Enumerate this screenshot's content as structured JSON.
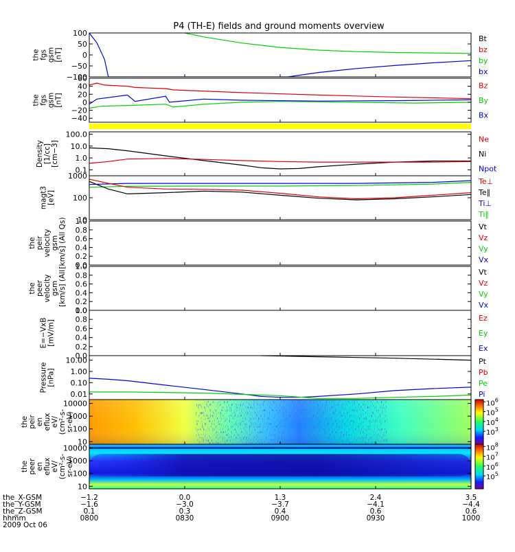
{
  "title": "P4 (TH-E) fields and ground moments overview",
  "colors": {
    "black": "#000000",
    "red": "#e00000",
    "green": "#00d000",
    "blue": "#0000e0",
    "yellow": "#ffff00"
  },
  "chart_data": [
    {
      "type": "line",
      "panel": "fgs-gsm-1",
      "ylabel": [
        "the",
        "fgs",
        "gsm",
        "[nT]"
      ],
      "ylim": [
        -100,
        100
      ],
      "yticks": [
        "100",
        "50",
        "0",
        "−50",
        "−100"
      ],
      "legend": [
        {
          "text": "Bt",
          "color": "#000000"
        },
        {
          "text": "bz",
          "color": "#e00000"
        },
        {
          "text": "by",
          "color": "#00d000"
        },
        {
          "text": "bx",
          "color": "#0000e0"
        }
      ],
      "series": [
        {
          "name": "by",
          "color": "#00d000",
          "x": [
            0.25,
            0.3,
            0.4,
            0.5,
            0.6,
            0.7,
            0.8,
            0.9,
            1.0
          ],
          "y": [
            100,
            82,
            54,
            34,
            22,
            15,
            11,
            9,
            7
          ]
        },
        {
          "name": "bx",
          "color": "#0000e0",
          "x": [
            0.0,
            0.02,
            0.04,
            0.05,
            0.52,
            0.6,
            0.7,
            0.8,
            0.9,
            1.0
          ],
          "y": [
            100,
            55,
            -20,
            -100,
            -100,
            -80,
            -62,
            -48,
            -36,
            -26
          ]
        }
      ]
    },
    {
      "type": "line",
      "panel": "fgs-gsm-2",
      "ylabel": [
        "the",
        "fgs",
        "gsm",
        "[nT]"
      ],
      "ylim": [
        -50,
        60
      ],
      "yticks": [
        "60",
        "40",
        "20",
        "0",
        "−20",
        "−40"
      ],
      "legend": [
        {
          "text": "Bz",
          "color": "#e00000"
        },
        {
          "text": "By",
          "color": "#00d000"
        },
        {
          "text": "Bx",
          "color": "#0000e0"
        }
      ],
      "series": [
        {
          "name": "Bz",
          "color": "#e00000",
          "x": [
            0.0,
            0.02,
            0.04,
            0.1,
            0.12,
            0.2,
            0.22,
            0.4,
            0.6,
            0.8,
            1.0
          ],
          "y": [
            43,
            48,
            43,
            40,
            37,
            34,
            31,
            24,
            18,
            13,
            9
          ]
        },
        {
          "name": "By",
          "color": "#00d000",
          "x": [
            0.0,
            0.03,
            0.1,
            0.2,
            0.22,
            0.3,
            0.4,
            0.5,
            0.7,
            0.85,
            1.0
          ],
          "y": [
            -15,
            -10,
            -8,
            -5,
            -12,
            -5,
            0,
            2,
            0,
            -2,
            0
          ]
        },
        {
          "name": "Bx",
          "color": "#0000e0",
          "x": [
            0.0,
            0.02,
            0.1,
            0.12,
            0.2,
            0.21,
            0.3,
            0.4,
            0.6,
            0.8,
            1.0
          ],
          "y": [
            -5,
            8,
            18,
            2,
            15,
            0,
            8,
            5,
            3,
            4,
            6
          ]
        }
      ]
    },
    {
      "type": "line",
      "panel": "density",
      "ylabel": [
        "Density",
        "[1/cc]",
        "[cm−3]"
      ],
      "ylim_log": [
        -1.5,
        2.2
      ],
      "yticks": [
        {
          "v": 100,
          "t": "100.0"
        },
        {
          "v": 10,
          "t": "10.0"
        },
        {
          "v": 1,
          "t": "1.0"
        },
        {
          "v": 0.1,
          "t": "0.1"
        }
      ],
      "legend": [
        {
          "text": "Ne",
          "color": "#e00000"
        },
        {
          "text": "Ni",
          "color": "#000000"
        },
        {
          "text": "Npot",
          "color": "#0000e0"
        }
      ],
      "series": [
        {
          "name": "Ni",
          "color": "#000000",
          "x": [
            0.0,
            0.05,
            0.1,
            0.2,
            0.3,
            0.4,
            0.45,
            0.5,
            0.55,
            0.6,
            0.7,
            0.8,
            0.9,
            1.0
          ],
          "y": [
            7,
            6,
            4,
            1.5,
            0.6,
            0.25,
            0.15,
            0.12,
            0.13,
            0.18,
            0.3,
            0.45,
            0.55,
            0.55
          ]
        },
        {
          "name": "Ne",
          "color": "#e00000",
          "x": [
            0.0,
            0.05,
            0.1,
            0.2,
            0.3,
            0.4,
            0.5,
            0.6,
            0.7,
            0.8,
            0.9,
            1.0
          ],
          "y": [
            0.35,
            0.5,
            0.8,
            0.9,
            0.75,
            0.6,
            0.5,
            0.45,
            0.45,
            0.45,
            0.45,
            0.5
          ]
        }
      ]
    },
    {
      "type": "line",
      "panel": "temperature",
      "ylabel": [
        "magt3",
        "[eV]"
      ],
      "ylim_log": [
        1,
        3
      ],
      "yticks": [
        {
          "v": 1000,
          "t": "1000"
        },
        {
          "v": 100,
          "t": "100"
        },
        {
          "v": 10,
          "t": "10"
        }
      ],
      "legend": [
        {
          "text": "Te⊥",
          "color": "#e00000"
        },
        {
          "text": "Te∥",
          "color": "#000000"
        },
        {
          "text": "Ti⊥",
          "color": "#0000e0"
        },
        {
          "text": "Ti∥",
          "color": "#00d000"
        }
      ],
      "series": [
        {
          "name": "Ti⊥",
          "color": "#0000e0",
          "x": [
            0.0,
            0.1,
            0.3,
            0.5,
            0.7,
            0.9,
            1.0
          ],
          "y": [
            400,
            450,
            450,
            450,
            450,
            500,
            600
          ]
        },
        {
          "name": "Ti∥",
          "color": "#00d000",
          "x": [
            0.0,
            0.1,
            0.3,
            0.5,
            0.7,
            0.9,
            1.0
          ],
          "y": [
            300,
            330,
            340,
            340,
            360,
            420,
            500
          ]
        },
        {
          "name": "Te⊥",
          "color": "#e00000",
          "x": [
            0.0,
            0.05,
            0.1,
            0.2,
            0.3,
            0.4,
            0.5,
            0.6,
            0.7,
            0.8,
            0.9,
            1.0
          ],
          "y": [
            700,
            450,
            300,
            250,
            240,
            220,
            160,
            110,
            90,
            100,
            130,
            170
          ]
        },
        {
          "name": "Te∥",
          "color": "#000000",
          "x": [
            0.0,
            0.05,
            0.1,
            0.2,
            0.3,
            0.4,
            0.5,
            0.6,
            0.7,
            0.8,
            0.9,
            1.0
          ],
          "y": [
            550,
            250,
            150,
            170,
            200,
            180,
            130,
            95,
            80,
            90,
            110,
            140
          ]
        }
      ]
    },
    {
      "type": "line",
      "panel": "peir-velocity",
      "ylabel": [
        "the",
        "peir",
        "velocity",
        "gsm",
        "[km/s] (All Qs)"
      ],
      "ylim": [
        0,
        1
      ],
      "yticks": [
        "1.0",
        "0.8",
        "0.6",
        "0.4",
        "0.2",
        "0.0"
      ],
      "legend": [
        {
          "text": "Vt",
          "color": "#000000"
        },
        {
          "text": "Vz",
          "color": "#e00000"
        },
        {
          "text": "Vy",
          "color": "#00d000"
        },
        {
          "text": "Vx",
          "color": "#0000e0"
        }
      ],
      "series": []
    },
    {
      "type": "line",
      "panel": "peer-velocity",
      "ylabel": [
        "the",
        "peer",
        "velocity",
        "gsm",
        "[km/s] (All"
      ],
      "ylim": [
        0,
        1
      ],
      "yticks": [
        "1.0",
        "0.8",
        "0.6",
        "0.4",
        "0.2",
        "0.0"
      ],
      "legend": [
        {
          "text": "Vt",
          "color": "#000000"
        },
        {
          "text": "Vz",
          "color": "#e00000"
        },
        {
          "text": "Vy",
          "color": "#00d000"
        },
        {
          "text": "Vx",
          "color": "#0000e0"
        }
      ],
      "series": []
    },
    {
      "type": "line",
      "panel": "efield",
      "ylabel": [
        "E=−VxB",
        "[mV/m]"
      ],
      "ylim": [
        0,
        1
      ],
      "yticks": [
        "1.0",
        "0.8",
        "0.6",
        "0.4",
        "0.2",
        "0.0"
      ],
      "legend": [
        {
          "text": "Ez",
          "color": "#e00000"
        },
        {
          "text": "Ey",
          "color": "#00d000"
        },
        {
          "text": "Ex",
          "color": "#0000e0"
        }
      ],
      "series": []
    },
    {
      "type": "line",
      "panel": "pressure",
      "ylabel": [
        "Pressure",
        "[nPa]"
      ],
      "ylim_log": [
        -2.5,
        1.4
      ],
      "yticks": [
        {
          "v": 10,
          "t": "10.00"
        },
        {
          "v": 1,
          "t": "1.00"
        },
        {
          "v": 0.1,
          "t": "0.10"
        },
        {
          "v": 0.01,
          "t": "0.01"
        }
      ],
      "legend": [
        {
          "text": "Pt",
          "color": "#000000"
        },
        {
          "text": "Pb",
          "color": "#e00000"
        },
        {
          "text": "Pe",
          "color": "#00d000"
        },
        {
          "text": "Pi",
          "color": "#0000e0"
        }
      ],
      "series": [
        {
          "name": "Pt",
          "color": "#000000",
          "x": [
            0.45,
            0.6,
            0.8,
            1.0
          ],
          "y": [
            25,
            20,
            15,
            10
          ]
        },
        {
          "name": "Pi",
          "color": "#0000e0",
          "x": [
            0.0,
            0.05,
            0.1,
            0.2,
            0.3,
            0.4,
            0.45,
            0.5,
            0.55,
            0.6,
            0.7,
            0.8,
            0.9,
            1.0
          ],
          "y": [
            0.25,
            0.2,
            0.15,
            0.06,
            0.025,
            0.01,
            0.006,
            0.005,
            0.005,
            0.006,
            0.01,
            0.02,
            0.03,
            0.04
          ]
        },
        {
          "name": "Pe",
          "color": "#00d000",
          "x": [
            0.0,
            0.1,
            0.3,
            0.5,
            0.6,
            0.7,
            0.8,
            0.9,
            1.0
          ],
          "y": [
            0.015,
            0.015,
            0.012,
            0.007,
            0.004,
            0.004,
            0.005,
            0.006,
            0.008
          ]
        }
      ]
    },
    {
      "type": "heatmap",
      "panel": "peir-spectrogram",
      "ylabel": [
        "the",
        "peir",
        "en",
        "eflux",
        "eV/",
        "(cm²-s-",
        "sr-eV)"
      ],
      "ylim_log": [
        0.8,
        4.3
      ],
      "yticks": [
        {
          "v": 10000,
          "t": "10000"
        },
        {
          "v": 1000,
          "t": "1000"
        },
        {
          "v": 100,
          "t": "100"
        },
        {
          "v": 10,
          "t": "10"
        }
      ],
      "colorbar_ticks": [
        {
          "exp": "6",
          "f": 0.05
        },
        {
          "exp": "5",
          "f": 0.27
        },
        {
          "exp": "4",
          "f": 0.49
        },
        {
          "exp": "3",
          "f": 0.71
        }
      ]
    },
    {
      "type": "heatmap",
      "panel": "peer-spectrogram",
      "ylabel": [
        "the",
        "peer",
        "en",
        "eflux",
        "eV/",
        "(cm²-s-",
        "sr-eV)"
      ],
      "ylim_log": [
        0.8,
        4.3
      ],
      "yticks": [
        {
          "v": 10000,
          "t": "10000"
        },
        {
          "v": 1000,
          "t": "1000"
        },
        {
          "v": 100,
          "t": "100"
        },
        {
          "v": 10,
          "t": "10"
        }
      ],
      "colorbar_ticks": [
        {
          "exp": "8",
          "f": 0.05
        },
        {
          "exp": "7",
          "f": 0.27
        },
        {
          "exp": "6",
          "f": 0.49
        },
        {
          "exp": "5",
          "f": 0.71
        }
      ]
    }
  ],
  "xaxis": {
    "labels": [
      "the_X-GSM",
      "the_Y-GSM",
      "the_Z-GSM",
      "hhmm",
      "2009 Oct 06"
    ],
    "ticks": [
      {
        "f": 0.0,
        "v": [
          "−1.2",
          "−1.6",
          "0.1",
          "0800"
        ]
      },
      {
        "f": 0.25,
        "v": [
          "0.0",
          "−3.0",
          "0.3",
          "0830"
        ]
      },
      {
        "f": 0.5,
        "v": [
          "1.3",
          "−3.7",
          "0.4",
          "0900"
        ]
      },
      {
        "f": 0.75,
        "v": [
          "2.4",
          "−4.1",
          "0.6",
          "0930"
        ]
      },
      {
        "f": 1.0,
        "v": [
          "3.5",
          "−4.4",
          "0.6",
          "1000"
        ]
      }
    ]
  }
}
